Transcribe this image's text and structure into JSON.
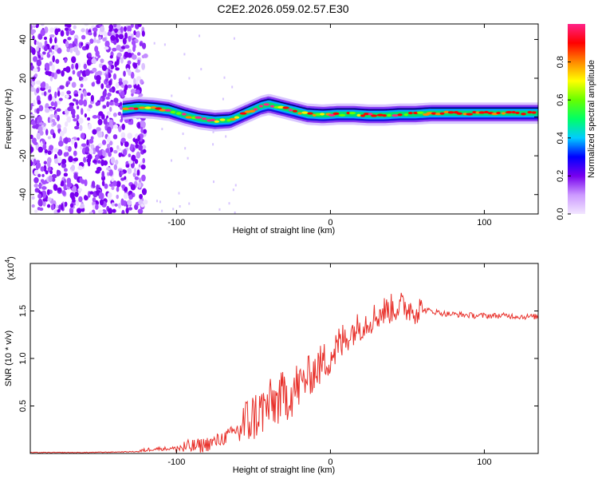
{
  "figure": {
    "title": "C2E2.2026.059.02.57.E30"
  },
  "chart_data": [
    {
      "type": "heatmap",
      "panel": "spectrogram",
      "xlabel": "Height of straight line (km)",
      "ylabel": "Frequency (Hz)",
      "xlim": [
        -195,
        135
      ],
      "ylim": [
        -50,
        48
      ],
      "x_ticks": [
        -100,
        0,
        100
      ],
      "x_tick_labels": [
        "-100",
        "0",
        "100"
      ],
      "y_ticks": [
        -40,
        -20,
        0,
        20,
        40
      ],
      "y_tick_labels": [
        "-40",
        "-20",
        "0",
        "20",
        "40"
      ],
      "noise_region_x": [
        -195,
        -120
      ],
      "ridge": {
        "x": [
          -135,
          -125,
          -115,
          -105,
          -95,
          -85,
          -75,
          -65,
          -55,
          -45,
          -40,
          -35,
          -25,
          -15,
          -5,
          5,
          15,
          25,
          35,
          45,
          55,
          65,
          75,
          85,
          95,
          105,
          115,
          125,
          135
        ],
        "frequency": [
          4,
          5,
          4.5,
          3.5,
          1,
          -1,
          -2,
          -1.5,
          2,
          5.5,
          6.5,
          5.5,
          3.5,
          1.5,
          1,
          1.5,
          1.5,
          1,
          1,
          1.5,
          1.5,
          2,
          2,
          2,
          2,
          2,
          2,
          2,
          2
        ]
      },
      "colorbar": {
        "label": "Normalized spectral amplitude",
        "range": [
          0,
          1
        ],
        "ticks": [
          0.0,
          0.2,
          0.4,
          0.6,
          0.8
        ],
        "tick_labels": [
          "0.0",
          "0.2",
          "0.4",
          "0.6",
          "0.8"
        ],
        "colors": [
          "#f2e6ff",
          "#cc99ff",
          "#7700ee",
          "#0000ff",
          "#00ccff",
          "#00ff66",
          "#66ff00",
          "#ffff00",
          "#ff8800",
          "#ff0000",
          "#ff2288"
        ]
      }
    },
    {
      "type": "line",
      "panel": "snr",
      "xlabel": "Height of straight line (km)",
      "ylabel": "SNR (10 * v/v)",
      "scale_label": "(x10",
      "scale_exponent": "4",
      "xlim": [
        -195,
        135
      ],
      "ylim": [
        0,
        2.0
      ],
      "x_ticks": [
        -100,
        0,
        100
      ],
      "x_tick_labels": [
        "-100",
        "0",
        "100"
      ],
      "y_ticks": [
        0.5,
        1.0,
        1.5
      ],
      "y_tick_labels": [
        "0.5",
        "1.0",
        "1.5"
      ],
      "color": "#e8302a",
      "series": [
        {
          "name": "SNR",
          "x": [
            -195,
            -180,
            -160,
            -140,
            -125,
            -115,
            -105,
            -95,
            -85,
            -75,
            -65,
            -55,
            -45,
            -35,
            -25,
            -15,
            -5,
            5,
            15,
            25,
            35,
            45,
            55,
            65,
            75,
            85,
            95,
            105,
            115,
            125,
            135
          ],
          "values": [
            0.01,
            0.01,
            0.01,
            0.015,
            0.02,
            0.05,
            0.05,
            0.06,
            0.08,
            0.12,
            0.2,
            0.32,
            0.45,
            0.55,
            0.65,
            0.8,
            0.95,
            1.12,
            1.3,
            1.4,
            1.5,
            1.55,
            1.52,
            1.5,
            1.47,
            1.46,
            1.45,
            1.45,
            1.45,
            1.44,
            1.44
          ]
        }
      ]
    }
  ]
}
